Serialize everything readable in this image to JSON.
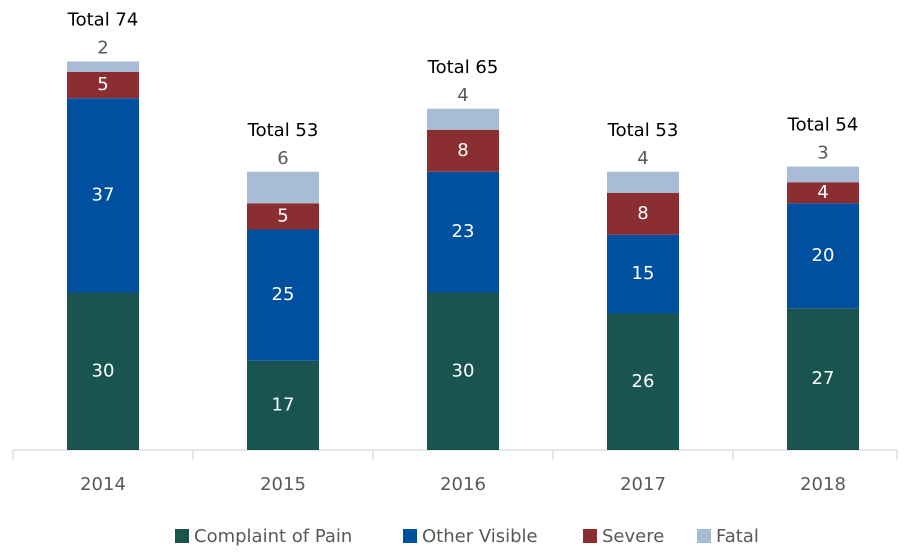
{
  "chart_data": {
    "type": "stacked_bar",
    "categories": [
      "2014",
      "2015",
      "2016",
      "2017",
      "2018"
    ],
    "series": [
      {
        "name": "Complaint of Pain",
        "color": "#1a5450",
        "values": [
          30,
          17,
          30,
          26,
          27
        ]
      },
      {
        "name": "Other Visible",
        "color": "#0050a0",
        "values": [
          37,
          25,
          23,
          15,
          20
        ]
      },
      {
        "name": "Severe",
        "color": "#8b2e32",
        "values": [
          5,
          5,
          8,
          8,
          4
        ]
      },
      {
        "name": "Fatal",
        "color": "#a9bcd6",
        "values": [
          2,
          6,
          4,
          4,
          3
        ]
      }
    ],
    "annotations": [
      "Total 74",
      "Total 53",
      "Total 65",
      "Total 53",
      "Total 54"
    ],
    "ylim": [
      0,
      80
    ],
    "legend": "bottom"
  }
}
